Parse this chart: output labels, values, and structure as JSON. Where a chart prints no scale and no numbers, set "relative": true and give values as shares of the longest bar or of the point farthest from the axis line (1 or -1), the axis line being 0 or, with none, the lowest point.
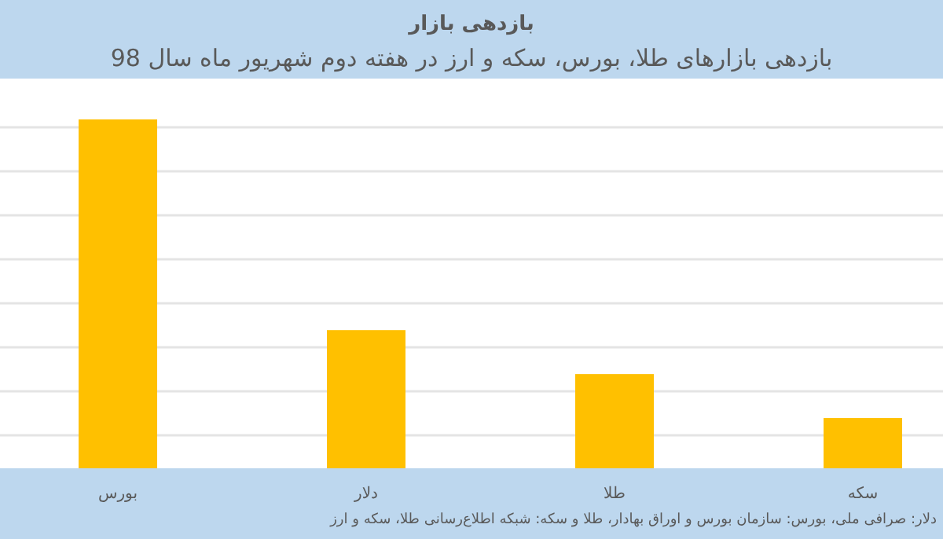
{
  "chart_data": {
    "type": "bar",
    "title": "بازدهی بازار",
    "subtitle": "بازدهی بازارهای طلا، بورس، سکه و ارز در هفته دوم شهریور ماه سال 98",
    "categories": [
      "بورس",
      "دلار",
      "طلا",
      "سکه"
    ],
    "values": [
      1,
      0.396,
      0.27,
      0.144
    ],
    "color": "#ffc000",
    "relative": true,
    "grid": "y",
    "annotations": [
      "دلار: صرافی ملی، بورس: سازمان بورس و اوراق بهادار، طلا و سکه: شبکه اطلاع‌رسانی طلا، سکه و ارز"
    ]
  }
}
